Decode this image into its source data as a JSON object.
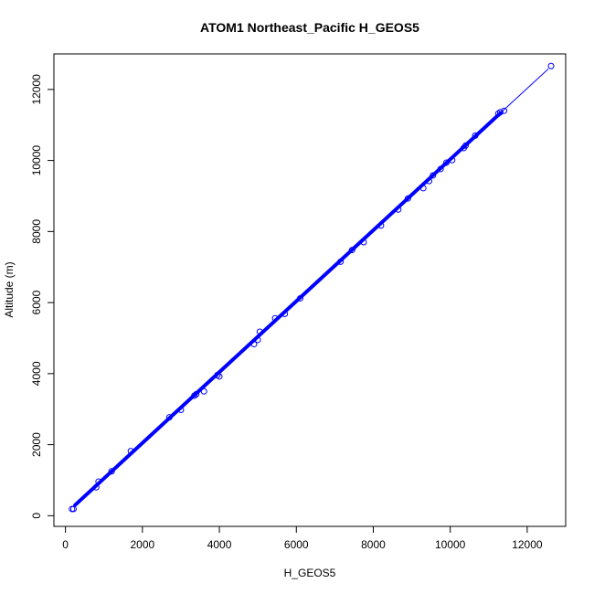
{
  "chart_data": {
    "type": "scatter",
    "title": "ATOM1 Northeast_Pacific H_GEOS5",
    "xlabel": "H_GEOS5",
    "ylabel": "Altitude (m)",
    "xlim": [
      -300,
      13000
    ],
    "ylim": [
      -300,
      13000
    ],
    "xticks": [
      0,
      2000,
      4000,
      6000,
      8000,
      10000,
      12000
    ],
    "yticks": [
      0,
      2000,
      4000,
      6000,
      8000,
      10000,
      12000
    ],
    "grid": false,
    "colors": {
      "points": "#0000ff",
      "line": "#0000ff",
      "axes": "#000000"
    },
    "series": [
      {
        "x": [
          170,
          210,
          800,
          860,
          1200,
          1700,
          2700,
          3000,
          3350,
          3400,
          3600,
          3950,
          4000,
          4900,
          5000,
          5050,
          5450,
          5700,
          6100,
          7150,
          7450,
          7750,
          8200,
          8650,
          8900,
          9300,
          9450,
          9550,
          9750,
          9900,
          10050,
          10350,
          10400,
          10650,
          11250,
          11300,
          11400,
          12620
        ],
        "y": [
          190,
          190,
          800,
          960,
          1250,
          1820,
          2770,
          2980,
          3380,
          3420,
          3500,
          3960,
          3920,
          4830,
          4950,
          5180,
          5560,
          5680,
          6120,
          7150,
          7480,
          7700,
          8170,
          8620,
          8930,
          9220,
          9420,
          9580,
          9760,
          9940,
          10010,
          10350,
          10420,
          10700,
          11320,
          11360,
          11400,
          12660
        ]
      }
    ],
    "fit_line": {
      "x": [
        250,
        12550
      ],
      "y": [
        300,
        12580
      ]
    }
  }
}
